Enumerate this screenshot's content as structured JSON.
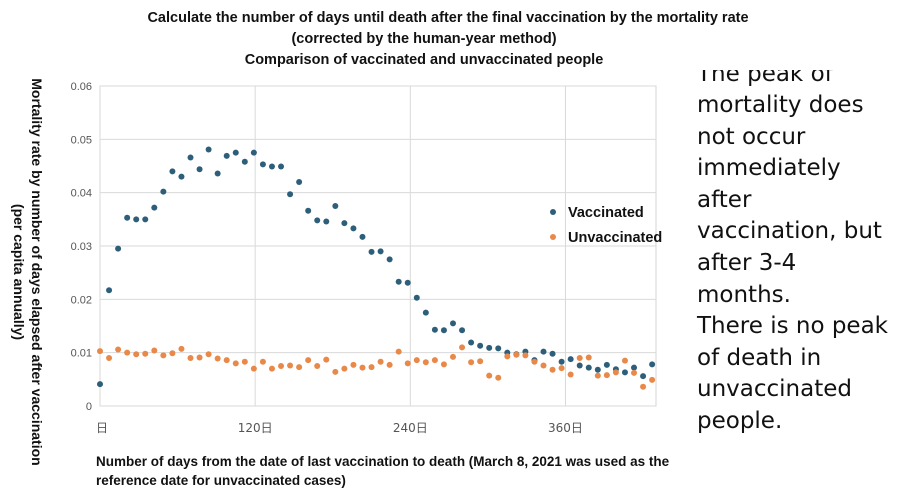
{
  "chart_data": {
    "type": "scatter",
    "title_lines": [
      "Calculate the number of days until death after the final vaccination by the mortality rate",
      "(corrected by the human-year method)",
      "Comparison of vaccinated and unvaccinated people"
    ],
    "ylabel": "Mortality rate by number of days elapsed after vaccination (per capita annually)",
    "xlabel": "Number of days from the date of last vaccination to death (March 8, 2021 was used as the reference date for unvaccinated cases)",
    "xlim": [
      0,
      430
    ],
    "ylim": [
      0,
      0.06
    ],
    "x_ticks": [
      {
        "value": 0,
        "label": "日"
      },
      {
        "value": 120,
        "label": "120日"
      },
      {
        "value": 240,
        "label": "240日"
      },
      {
        "value": 360,
        "label": "360日"
      }
    ],
    "y_ticks": [
      {
        "value": 0,
        "label": "0"
      },
      {
        "value": 0.01,
        "label": "0.01"
      },
      {
        "value": 0.02,
        "label": "0.02"
      },
      {
        "value": 0.03,
        "label": "0.03"
      },
      {
        "value": 0.04,
        "label": "0.04"
      },
      {
        "value": 0.05,
        "label": "0.05"
      },
      {
        "value": 0.06,
        "label": "0.06"
      }
    ],
    "grid": true,
    "legend_position": "right",
    "series": [
      {
        "name": "Vaccinated",
        "color": "#2e5f7a",
        "x": [
          0,
          7,
          14,
          21,
          28,
          35,
          42,
          49,
          56,
          63,
          70,
          77,
          84,
          91,
          98,
          105,
          112,
          119,
          126,
          133,
          140,
          147,
          154,
          161,
          168,
          175,
          182,
          189,
          196,
          203,
          210,
          217,
          224,
          231,
          238,
          245,
          252,
          259,
          266,
          273,
          280,
          287,
          294,
          301,
          308,
          315,
          322,
          329,
          336,
          343,
          350,
          357,
          364,
          371,
          378,
          385,
          392,
          399,
          406,
          413,
          420,
          427
        ],
        "y": [
          0.0041,
          0.0217,
          0.0295,
          0.0353,
          0.035,
          0.035,
          0.0372,
          0.0402,
          0.044,
          0.043,
          0.0466,
          0.0444,
          0.0481,
          0.0436,
          0.0469,
          0.0475,
          0.0458,
          0.0475,
          0.0453,
          0.0449,
          0.0449,
          0.0397,
          0.042,
          0.0366,
          0.0348,
          0.0346,
          0.0375,
          0.0343,
          0.0333,
          0.0317,
          0.0289,
          0.029,
          0.0275,
          0.0233,
          0.0231,
          0.0203,
          0.0175,
          0.0143,
          0.0142,
          0.0155,
          0.0142,
          0.0119,
          0.0113,
          0.0109,
          0.0108,
          0.01,
          0.0097,
          0.0102,
          0.0086,
          0.0102,
          0.0098,
          0.0083,
          0.0088,
          0.0076,
          0.0072,
          0.0068,
          0.0077,
          0.0069,
          0.0063,
          0.0072,
          0.0056,
          0.0078
        ]
      },
      {
        "name": "Unvaccinated",
        "color": "#e8894a",
        "x": [
          0,
          7,
          14,
          21,
          28,
          35,
          42,
          49,
          56,
          63,
          70,
          77,
          84,
          91,
          98,
          105,
          112,
          119,
          126,
          133,
          140,
          147,
          154,
          161,
          168,
          175,
          182,
          189,
          196,
          203,
          210,
          217,
          224,
          231,
          238,
          245,
          252,
          259,
          266,
          273,
          280,
          287,
          294,
          301,
          308,
          315,
          322,
          329,
          336,
          343,
          350,
          357,
          364,
          371,
          378,
          385,
          392,
          399,
          406,
          413,
          420,
          427
        ],
        "y": [
          0.0103,
          0.009,
          0.0106,
          0.01,
          0.0097,
          0.0098,
          0.0104,
          0.0095,
          0.0099,
          0.0107,
          0.009,
          0.0091,
          0.0097,
          0.0089,
          0.0086,
          0.008,
          0.0083,
          0.007,
          0.0083,
          0.007,
          0.0075,
          0.0076,
          0.0073,
          0.0086,
          0.0075,
          0.0087,
          0.0064,
          0.007,
          0.0077,
          0.0072,
          0.0073,
          0.0083,
          0.0077,
          0.0102,
          0.008,
          0.0086,
          0.0082,
          0.0086,
          0.0078,
          0.0092,
          0.011,
          0.0082,
          0.0084,
          0.0057,
          0.0053,
          0.0093,
          0.0096,
          0.0095,
          0.0083,
          0.0076,
          0.0068,
          0.0071,
          0.0059,
          0.009,
          0.0091,
          0.0057,
          0.0058,
          0.0063,
          0.0085,
          0.0062,
          0.0036,
          0.0049
        ]
      }
    ]
  },
  "side_text": {
    "clipped_top": "The peak of",
    "lines": [
      "mortality does",
      "not occur",
      "immediately after",
      "vaccination, but",
      "after 3-4 months.",
      "There is no peak",
      "of death in",
      "unvaccinated",
      "people."
    ]
  }
}
